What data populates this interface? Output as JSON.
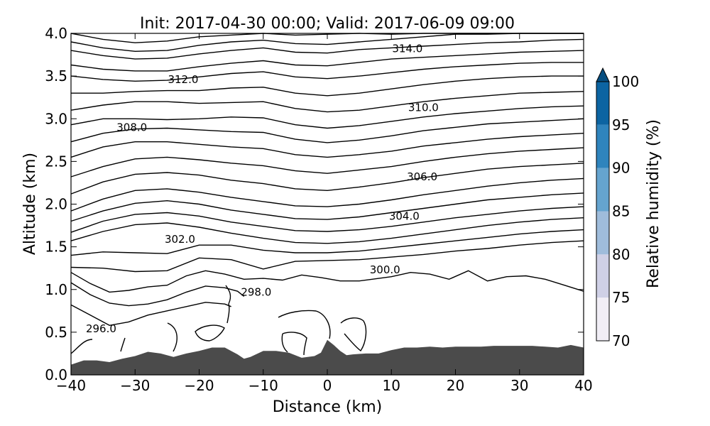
{
  "chart_data": {
    "type": "contour",
    "title": "Init: 2017-04-30 00:00; Valid: 2017-06-09 09:00",
    "xlabel": "Distance (km)",
    "ylabel": "Altitude (km)",
    "xlim": [
      -40,
      40
    ],
    "ylim": [
      0,
      4
    ],
    "x_ticks": [
      -40,
      -30,
      -20,
      -10,
      0,
      10,
      20,
      30,
      40
    ],
    "x_tick_labels": [
      "−40",
      "−30",
      "−20",
      "−10",
      "0",
      "10",
      "20",
      "30",
      "40"
    ],
    "y_ticks": [
      0,
      0.5,
      1,
      1.5,
      2,
      2.5,
      3,
      3.5,
      4
    ],
    "y_tick_labels": [
      "0.0",
      "0.5",
      "1.0",
      "1.5",
      "2.0",
      "2.5",
      "3.0",
      "3.5",
      "4.0"
    ],
    "colorbar": {
      "label": "Relative humidity (%)",
      "levels": [
        70,
        75,
        80,
        85,
        90,
        95,
        100
      ],
      "tick_labels": [
        "70",
        "75",
        "80",
        "85",
        "90",
        "95",
        "100"
      ],
      "colors": [
        "#f1eef6",
        "#cfd0e6",
        "#9fbcdb",
        "#65a4cf",
        "#2f84bd",
        "#0c64a2",
        "#064e80"
      ],
      "extend": "max"
    },
    "terrain": {
      "color": "#4b4b4b",
      "x": [
        -40,
        -38,
        -36,
        -34,
        -32,
        -30,
        -28,
        -26,
        -24,
        -22,
        -20,
        -18,
        -16,
        -14,
        -13,
        -12,
        -10,
        -8,
        -6,
        -4,
        -2,
        -1,
        0,
        1,
        2,
        3,
        4,
        6,
        8,
        10,
        12,
        14,
        16,
        18,
        20,
        22,
        24,
        26,
        28,
        30,
        32,
        34,
        36,
        38,
        40
      ],
      "y": [
        0.12,
        0.17,
        0.17,
        0.15,
        0.19,
        0.22,
        0.27,
        0.25,
        0.21,
        0.25,
        0.28,
        0.32,
        0.32,
        0.24,
        0.19,
        0.21,
        0.28,
        0.28,
        0.26,
        0.2,
        0.22,
        0.26,
        0.41,
        0.35,
        0.28,
        0.23,
        0.24,
        0.25,
        0.25,
        0.29,
        0.32,
        0.32,
        0.33,
        0.32,
        0.33,
        0.33,
        0.33,
        0.34,
        0.34,
        0.34,
        0.34,
        0.33,
        0.32,
        0.35,
        0.32
      ]
    },
    "contour_labels": [
      {
        "text": "296.0",
        "x": -35.3,
        "y": 0.54
      },
      {
        "text": "298.0",
        "x": -11.1,
        "y": 0.97
      },
      {
        "text": "300.0",
        "x": 9.0,
        "y": 1.23
      },
      {
        "text": "302.0",
        "x": -23.0,
        "y": 1.59
      },
      {
        "text": "304.0",
        "x": 12.0,
        "y": 1.86
      },
      {
        "text": "306.0",
        "x": 14.8,
        "y": 2.32
      },
      {
        "text": "308.0",
        "x": -30.5,
        "y": 2.9
      },
      {
        "text": "310.0",
        "x": 15.0,
        "y": 3.13
      },
      {
        "text": "312.0",
        "x": -22.5,
        "y": 3.46
      },
      {
        "text": "314.0",
        "x": 12.5,
        "y": 3.82
      }
    ],
    "isolines": [
      {
        "x": [
          -40,
          -35,
          -30,
          -25,
          -20,
          -15,
          -10,
          -5,
          0,
          5,
          10,
          15,
          20,
          25,
          30,
          35,
          40
        ],
        "y": [
          4.0,
          3.93,
          3.89,
          3.91,
          3.96,
          3.98,
          4.0,
          3.98,
          3.99,
          4.0,
          3.99,
          4.0,
          4.0,
          4.0,
          4.0,
          4.0,
          4.0
        ]
      },
      {
        "x": [
          -40,
          -35,
          -30,
          -25,
          -20,
          -15,
          -10,
          -5,
          0,
          5,
          10,
          15,
          20,
          25,
          30,
          35,
          40
        ],
        "y": [
          3.9,
          3.83,
          3.79,
          3.8,
          3.86,
          3.9,
          3.92,
          3.88,
          3.87,
          3.9,
          3.93,
          3.96,
          3.99,
          3.99,
          4.0,
          4.0,
          4.0
        ]
      },
      {
        "x": [
          -40,
          -35,
          -30,
          -25,
          -20,
          -15,
          -10,
          -5,
          0,
          5,
          10,
          15,
          20,
          25,
          30,
          35,
          40
        ],
        "y": [
          3.8,
          3.74,
          3.7,
          3.71,
          3.76,
          3.8,
          3.83,
          3.78,
          3.77,
          3.81,
          3.83,
          3.85,
          3.87,
          3.89,
          3.9,
          3.92,
          3.93
        ]
      },
      {
        "x": [
          -40,
          -35,
          -30,
          -25,
          -20,
          -15,
          -10,
          -5,
          0,
          5,
          10,
          15,
          20,
          25,
          30,
          35,
          40
        ],
        "y": [
          3.63,
          3.58,
          3.56,
          3.56,
          3.61,
          3.65,
          3.68,
          3.63,
          3.62,
          3.66,
          3.7,
          3.72,
          3.74,
          3.76,
          3.78,
          3.79,
          3.8
        ]
      },
      {
        "x": [
          -40,
          -35,
          -30,
          -25,
          -20,
          -15,
          -10,
          -5,
          0,
          5,
          10,
          15,
          20,
          25,
          30,
          35,
          40
        ],
        "y": [
          3.5,
          3.46,
          3.44,
          3.45,
          3.49,
          3.53,
          3.55,
          3.49,
          3.47,
          3.5,
          3.54,
          3.58,
          3.61,
          3.63,
          3.65,
          3.66,
          3.66
        ]
      },
      {
        "x": [
          -40,
          -35,
          -30,
          -25,
          -20,
          -15,
          -10,
          -5,
          0,
          5,
          10,
          15,
          20,
          25,
          30,
          35,
          40
        ],
        "y": [
          3.3,
          3.3,
          3.32,
          3.33,
          3.33,
          3.36,
          3.37,
          3.3,
          3.27,
          3.3,
          3.35,
          3.4,
          3.44,
          3.47,
          3.49,
          3.5,
          3.5
        ]
      },
      {
        "x": [
          -40,
          -35,
          -30,
          -25,
          -20,
          -15,
          -10,
          -5,
          0,
          5,
          10,
          15,
          20,
          25,
          30,
          35,
          40
        ],
        "y": [
          3.1,
          3.16,
          3.2,
          3.2,
          3.18,
          3.19,
          3.2,
          3.12,
          3.08,
          3.1,
          3.15,
          3.2,
          3.24,
          3.27,
          3.3,
          3.31,
          3.32
        ]
      },
      {
        "x": [
          -40,
          -35,
          -30,
          -25,
          -20,
          -15,
          -10,
          -5,
          0,
          5,
          10,
          15,
          20,
          25,
          30,
          35,
          40
        ],
        "y": [
          2.93,
          3.0,
          3.0,
          2.99,
          3.0,
          3.02,
          3.01,
          2.93,
          2.89,
          2.92,
          2.97,
          3.02,
          3.06,
          3.09,
          3.12,
          3.14,
          3.15
        ]
      },
      {
        "x": [
          -40,
          -35,
          -30,
          -25,
          -20,
          -15,
          -10,
          -5,
          0,
          5,
          10,
          15,
          20,
          25,
          30,
          35,
          40
        ],
        "y": [
          2.73,
          2.83,
          2.88,
          2.89,
          2.87,
          2.85,
          2.84,
          2.76,
          2.72,
          2.75,
          2.8,
          2.86,
          2.9,
          2.94,
          2.96,
          2.98,
          3.0
        ]
      },
      {
        "x": [
          -40,
          -35,
          -30,
          -25,
          -20,
          -15,
          -10,
          -5,
          0,
          5,
          10,
          15,
          20,
          25,
          30,
          35,
          40
        ],
        "y": [
          2.55,
          2.67,
          2.73,
          2.73,
          2.7,
          2.67,
          2.65,
          2.58,
          2.55,
          2.58,
          2.62,
          2.68,
          2.72,
          2.76,
          2.79,
          2.81,
          2.83
        ]
      },
      {
        "x": [
          -40,
          -35,
          -30,
          -25,
          -20,
          -15,
          -10,
          -5,
          0,
          5,
          10,
          15,
          20,
          25,
          30,
          35,
          40
        ],
        "y": [
          2.32,
          2.44,
          2.53,
          2.55,
          2.52,
          2.48,
          2.45,
          2.39,
          2.36,
          2.4,
          2.44,
          2.5,
          2.55,
          2.59,
          2.62,
          2.64,
          2.66
        ]
      },
      {
        "x": [
          -40,
          -35,
          -30,
          -25,
          -20,
          -15,
          -10,
          -5,
          0,
          5,
          10,
          15,
          20,
          25,
          30,
          35,
          40
        ],
        "y": [
          2.12,
          2.26,
          2.35,
          2.37,
          2.34,
          2.28,
          2.24,
          2.18,
          2.16,
          2.2,
          2.25,
          2.31,
          2.36,
          2.41,
          2.44,
          2.46,
          2.48
        ]
      },
      {
        "x": [
          -40,
          -35,
          -30,
          -25,
          -20,
          -15,
          -10,
          -5,
          0,
          5,
          10,
          15,
          20,
          25,
          30,
          35,
          40
        ],
        "y": [
          1.92,
          2.06,
          2.16,
          2.18,
          2.14,
          2.08,
          2.03,
          1.98,
          1.97,
          2.0,
          2.05,
          2.11,
          2.16,
          2.21,
          2.25,
          2.28,
          2.3
        ]
      },
      {
        "x": [
          -40,
          -35,
          -30,
          -25,
          -20,
          -15,
          -10,
          -5,
          0,
          5,
          10,
          15,
          20,
          25,
          30,
          35,
          40
        ],
        "y": [
          1.8,
          1.92,
          2.01,
          2.04,
          2.0,
          1.93,
          1.88,
          1.83,
          1.82,
          1.85,
          1.9,
          1.95,
          2.0,
          2.05,
          2.08,
          2.11,
          2.13
        ]
      },
      {
        "x": [
          -40,
          -35,
          -30,
          -25,
          -20,
          -15,
          -10,
          -5,
          0,
          5,
          10,
          15,
          20,
          25,
          30,
          35,
          40
        ],
        "y": [
          1.67,
          1.8,
          1.88,
          1.9,
          1.86,
          1.79,
          1.74,
          1.69,
          1.68,
          1.7,
          1.74,
          1.79,
          1.84,
          1.88,
          1.92,
          1.95,
          1.97
        ]
      },
      {
        "x": [
          -40,
          -35,
          -30,
          -25,
          -20,
          -15,
          -10,
          -5,
          0,
          5,
          10,
          15,
          20,
          25,
          30,
          35,
          40
        ],
        "y": [
          1.57,
          1.68,
          1.76,
          1.78,
          1.73,
          1.66,
          1.6,
          1.55,
          1.54,
          1.56,
          1.6,
          1.65,
          1.7,
          1.75,
          1.79,
          1.82,
          1.84
        ]
      },
      {
        "x": [
          -40,
          -35,
          -30,
          -25,
          -20,
          -15,
          -10,
          -5,
          0,
          5,
          10,
          15,
          20,
          25,
          30,
          35,
          40
        ],
        "y": [
          1.4,
          1.44,
          1.43,
          1.42,
          1.52,
          1.52,
          1.46,
          1.43,
          1.43,
          1.45,
          1.49,
          1.53,
          1.57,
          1.61,
          1.65,
          1.68,
          1.7
        ]
      },
      {
        "x": [
          -40,
          -35,
          -30,
          -25,
          -20,
          -15,
          -10,
          -5,
          0,
          5,
          10,
          15,
          20,
          25,
          30,
          35,
          40
        ],
        "y": [
          1.26,
          1.25,
          1.21,
          1.22,
          1.37,
          1.35,
          1.24,
          1.33,
          1.34,
          1.35,
          1.38,
          1.41,
          1.45,
          1.48,
          1.52,
          1.55,
          1.57
        ]
      },
      {
        "x": [
          -40,
          -37,
          -34,
          -31,
          -28,
          -25,
          -22,
          -19,
          -16,
          -13,
          -10,
          -7,
          -4,
          -1,
          2,
          5,
          7,
          10,
          13,
          16,
          19,
          22,
          25,
          28,
          31,
          34,
          37,
          40
        ],
        "y": [
          1.2,
          1.07,
          0.97,
          0.99,
          1.03,
          1.05,
          1.16,
          1.22,
          1.18,
          1.12,
          1.13,
          1.11,
          1.17,
          1.14,
          1.1,
          1.1,
          1.12,
          1.15,
          1.2,
          1.18,
          1.12,
          1.22,
          1.1,
          1.15,
          1.16,
          1.12,
          1.05,
          0.98
        ]
      },
      {
        "x": [
          -40,
          -37,
          -34,
          -31,
          -28,
          -25,
          -22,
          -19,
          -16,
          -14,
          -13
        ],
        "y": [
          1.08,
          0.94,
          0.84,
          0.81,
          0.83,
          0.88,
          0.97,
          1.04,
          1.02,
          0.98,
          0.92
        ]
      },
      {
        "x": [
          -40,
          -37,
          -34,
          -31,
          -28,
          -25,
          -22,
          -19,
          -16,
          -15
        ],
        "y": [
          0.82,
          0.7,
          0.58,
          0.62,
          0.7,
          0.75,
          0.8,
          0.85,
          0.83,
          0.8
        ]
      }
    ]
  }
}
